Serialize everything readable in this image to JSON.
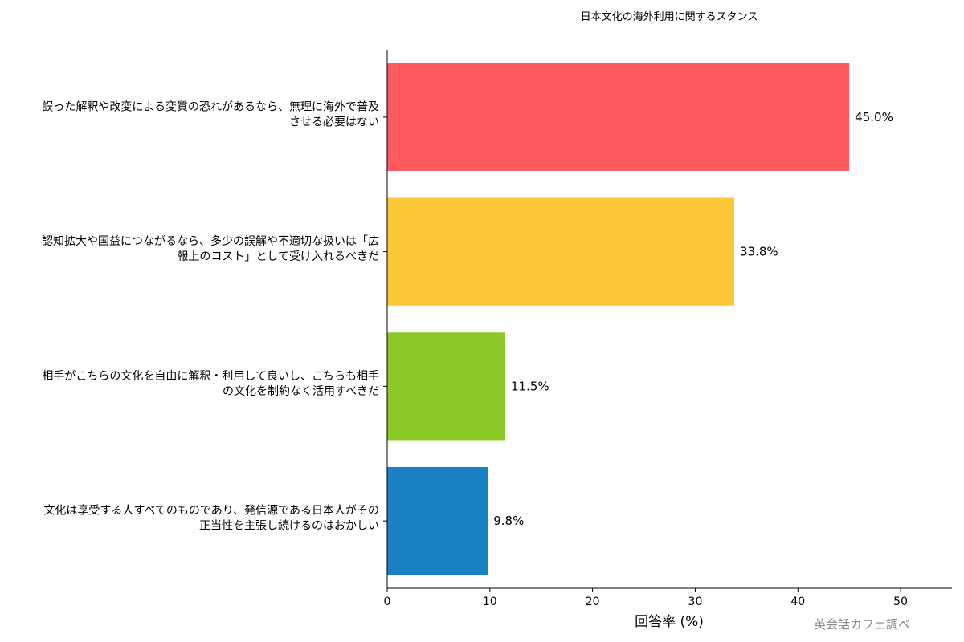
{
  "chart_data": {
    "type": "bar",
    "orientation": "horizontal",
    "title": "日本文化の海外利用に関するスタンス",
    "xlabel": "回答率 (%)",
    "ylabel": "",
    "xlim": [
      0,
      55
    ],
    "xticks": [
      0,
      10,
      20,
      30,
      40,
      50
    ],
    "grid": false,
    "categories": [
      [
        "誤った解釈や改変による変質の恐れがあるなら、無理に海外で普及",
        "させる必要はない"
      ],
      [
        "認知拡大や国益につながるなら、多少の誤解や不適切な扱いは「広",
        "報上のコスト」として受け入れるべきだ"
      ],
      [
        "相手がこちらの文化を自由に解釈・利用して良いし、こちらも相手",
        "の文化を制約なく活用すべきだ"
      ],
      [
        "文化は享受する人すべてのものであり、発信源である日本人がその",
        "正当性を主張し続けるのはおかしい"
      ]
    ],
    "values": [
      45.0,
      33.8,
      11.5,
      9.8
    ],
    "value_labels": [
      "45.0%",
      "33.8%",
      "11.5%",
      "9.8%"
    ],
    "colors": [
      "#ff5a5f",
      "#fcc737",
      "#8bc926",
      "#1982c4"
    ],
    "source": "英会話カフェ調べ"
  }
}
